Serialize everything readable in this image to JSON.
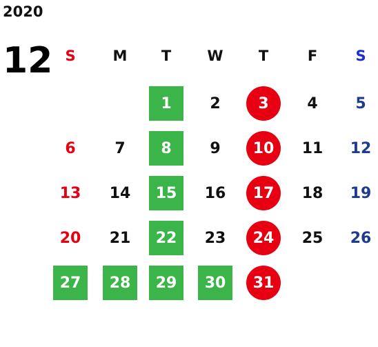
{
  "calendar": {
    "year": "2020",
    "month": "12",
    "weekdays": [
      "S",
      "M",
      "T",
      "W",
      "T",
      "F",
      "S"
    ],
    "colors": {
      "sunday": "#e60012",
      "saturday": "#1d3c8f",
      "green_highlight": "#3bb54a",
      "red_highlight": "#e60012"
    },
    "weeks": [
      [
        "",
        "",
        "1",
        "2",
        "3",
        "4",
        "5"
      ],
      [
        "6",
        "7",
        "8",
        "9",
        "10",
        "11",
        "12"
      ],
      [
        "13",
        "14",
        "15",
        "16",
        "17",
        "18",
        "19"
      ],
      [
        "20",
        "21",
        "22",
        "23",
        "24",
        "25",
        "26"
      ],
      [
        "27",
        "28",
        "29",
        "30",
        "31",
        "",
        ""
      ]
    ],
    "green_days": [
      "1",
      "8",
      "15",
      "22",
      "27",
      "28",
      "29",
      "30"
    ],
    "red_circle_days": [
      "3",
      "10",
      "17",
      "24",
      "31"
    ]
  }
}
